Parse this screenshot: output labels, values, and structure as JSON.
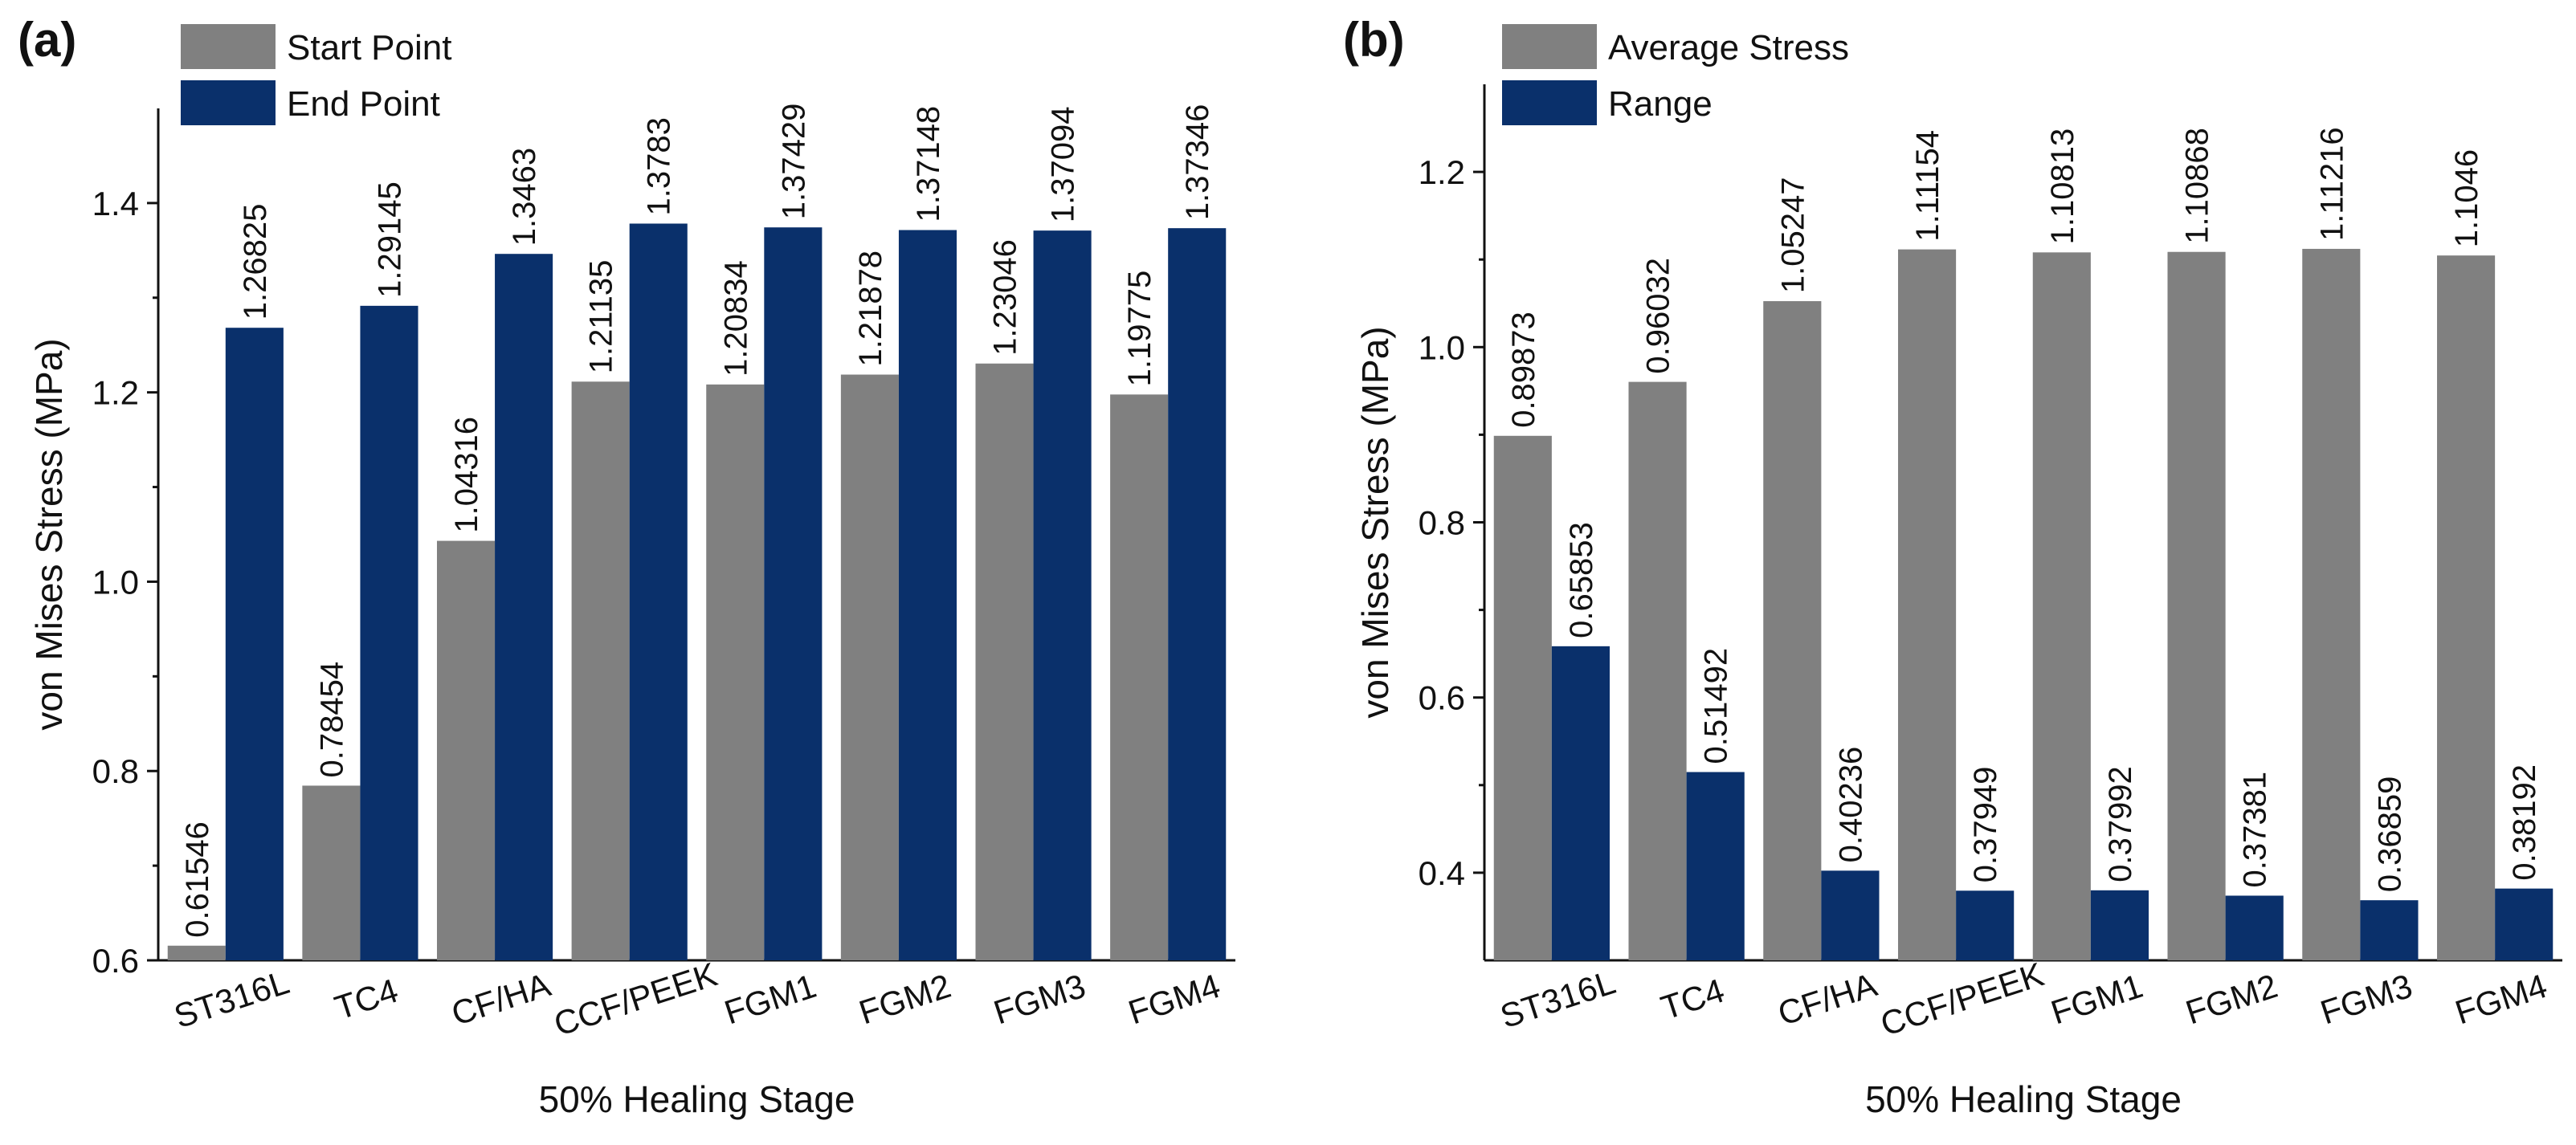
{
  "colors": {
    "start": "#808080",
    "end": "#0a306b",
    "axis": "#111111"
  },
  "chart_data": [
    {
      "type": "bar",
      "panel_label": "(a)",
      "title": "",
      "xlabel": "50% Healing Stage",
      "ylabel": "von Mises Stress (MPa)",
      "categories": [
        "ST316L",
        "TC4",
        "CF/HA",
        "CCF/PEEK",
        "FGM1",
        "FGM2",
        "FGM3",
        "FGM4"
      ],
      "ylim": [
        0.6,
        1.5
      ],
      "yticks": [
        0.6,
        0.8,
        1.0,
        1.2,
        1.4
      ],
      "ytick_labels": [
        "0.6",
        "0.8",
        "1.0",
        "1.2",
        "1.4"
      ],
      "legend": "top-left",
      "series": [
        {
          "name": "Start Point",
          "color_key": "start",
          "values": [
            0.61546,
            0.78454,
            1.04316,
            1.21135,
            1.20834,
            1.21878,
            1.23046,
            1.19775
          ],
          "labels": [
            "0.61546",
            "0.78454",
            "1.04316",
            "1.21135",
            "1.20834",
            "1.21878",
            "1.23046",
            "1.19775"
          ]
        },
        {
          "name": "End Point",
          "color_key": "end",
          "values": [
            1.26825,
            1.29145,
            1.3463,
            1.3783,
            1.37429,
            1.37148,
            1.37094,
            1.37346
          ],
          "labels": [
            "1.26825",
            "1.29145",
            "1.3463",
            "1.3783",
            "1.37429",
            "1.37148",
            "1.37094",
            "1.37346"
          ]
        }
      ]
    },
    {
      "type": "bar",
      "panel_label": "(b)",
      "title": "",
      "xlabel": "50% Healing Stage",
      "ylabel": "von Mises Stress (MPa)",
      "categories": [
        "ST316L",
        "TC4",
        "CF/HA",
        "CCF/PEEK",
        "FGM1",
        "FGM2",
        "FGM3",
        "FGM4"
      ],
      "ylim": [
        0.3,
        1.3
      ],
      "yticks": [
        0.4,
        0.6,
        0.8,
        1.0,
        1.2
      ],
      "ytick_labels": [
        "0.4",
        "0.6",
        "0.8",
        "1.0",
        "1.2"
      ],
      "legend": "top-left",
      "series": [
        {
          "name": "Average Stress",
          "color_key": "start",
          "values": [
            0.89873,
            0.96032,
            1.05247,
            1.11154,
            1.10813,
            1.10868,
            1.11216,
            1.1046
          ],
          "labels": [
            "0.89873",
            "0.96032",
            "1.05247",
            "1.11154",
            "1.10813",
            "1.10868",
            "1.11216",
            "1.1046"
          ]
        },
        {
          "name": "Range",
          "color_key": "end",
          "values": [
            0.65853,
            0.51492,
            0.40236,
            0.37949,
            0.37992,
            0.37381,
            0.36859,
            0.38192
          ],
          "labels": [
            "0.65853",
            "0.51492",
            "0.40236",
            "0.37949",
            "0.37992",
            "0.37381",
            "0.36859",
            "0.38192"
          ]
        }
      ]
    }
  ]
}
